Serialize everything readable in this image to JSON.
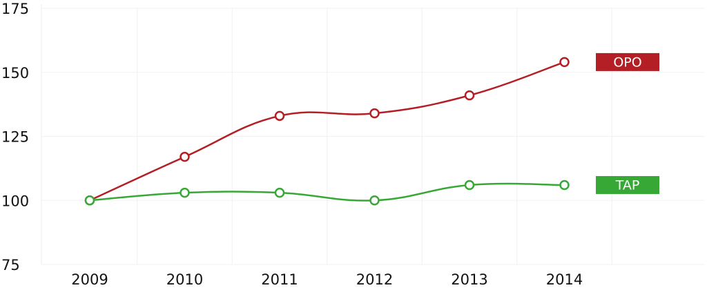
{
  "chart_data": {
    "type": "line",
    "categories": [
      "2009",
      "2010",
      "2011",
      "2012",
      "2013",
      "2014"
    ],
    "series": [
      {
        "name": "OPO",
        "color": "#b31f24",
        "values": [
          100,
          117,
          133,
          134,
          141,
          154
        ]
      },
      {
        "name": "TAP",
        "color": "#37a836",
        "values": [
          100,
          103,
          103,
          100,
          106,
          106
        ]
      }
    ],
    "ylim": [
      75,
      175
    ],
    "yticks": [
      75,
      100,
      125,
      150,
      175
    ],
    "grid": true
  }
}
